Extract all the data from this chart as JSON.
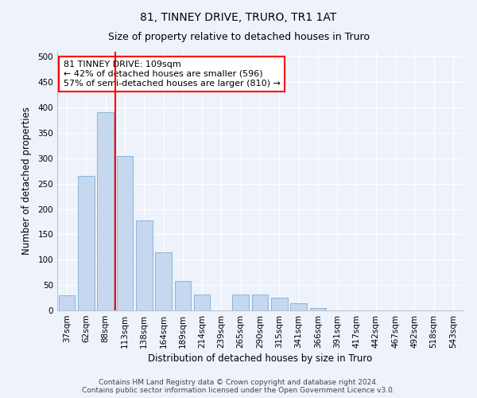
{
  "title1": "81, TINNEY DRIVE, TRURO, TR1 1AT",
  "title2": "Size of property relative to detached houses in Truro",
  "xlabel": "Distribution of detached houses by size in Truro",
  "ylabel": "Number of detached properties",
  "bar_labels": [
    "37sqm",
    "62sqm",
    "88sqm",
    "113sqm",
    "138sqm",
    "164sqm",
    "189sqm",
    "214sqm",
    "239sqm",
    "265sqm",
    "290sqm",
    "315sqm",
    "341sqm",
    "366sqm",
    "391sqm",
    "417sqm",
    "442sqm",
    "467sqm",
    "492sqm",
    "518sqm",
    "543sqm"
  ],
  "bar_values": [
    30,
    265,
    390,
    305,
    178,
    115,
    58,
    32,
    0,
    32,
    32,
    25,
    14,
    5,
    0,
    0,
    0,
    0,
    0,
    0,
    0
  ],
  "bar_color": "#c5d8f0",
  "bar_edgecolor": "#7badd4",
  "red_line_index": 3,
  "annotation_text": "81 TINNEY DRIVE: 109sqm\n← 42% of detached houses are smaller (596)\n57% of semi-detached houses are larger (810) →",
  "annotation_box_color": "white",
  "annotation_box_edgecolor": "red",
  "ylim": [
    0,
    510
  ],
  "yticks": [
    0,
    50,
    100,
    150,
    200,
    250,
    300,
    350,
    400,
    450,
    500
  ],
  "background_color": "#eef2fa",
  "grid_color": "white",
  "footer_text": "Contains HM Land Registry data © Crown copyright and database right 2024.\nContains public sector information licensed under the Open Government Licence v3.0.",
  "title1_fontsize": 10,
  "title2_fontsize": 9,
  "xlabel_fontsize": 8.5,
  "ylabel_fontsize": 8.5,
  "tick_fontsize": 7.5,
  "annotation_fontsize": 8,
  "footer_fontsize": 6.5
}
